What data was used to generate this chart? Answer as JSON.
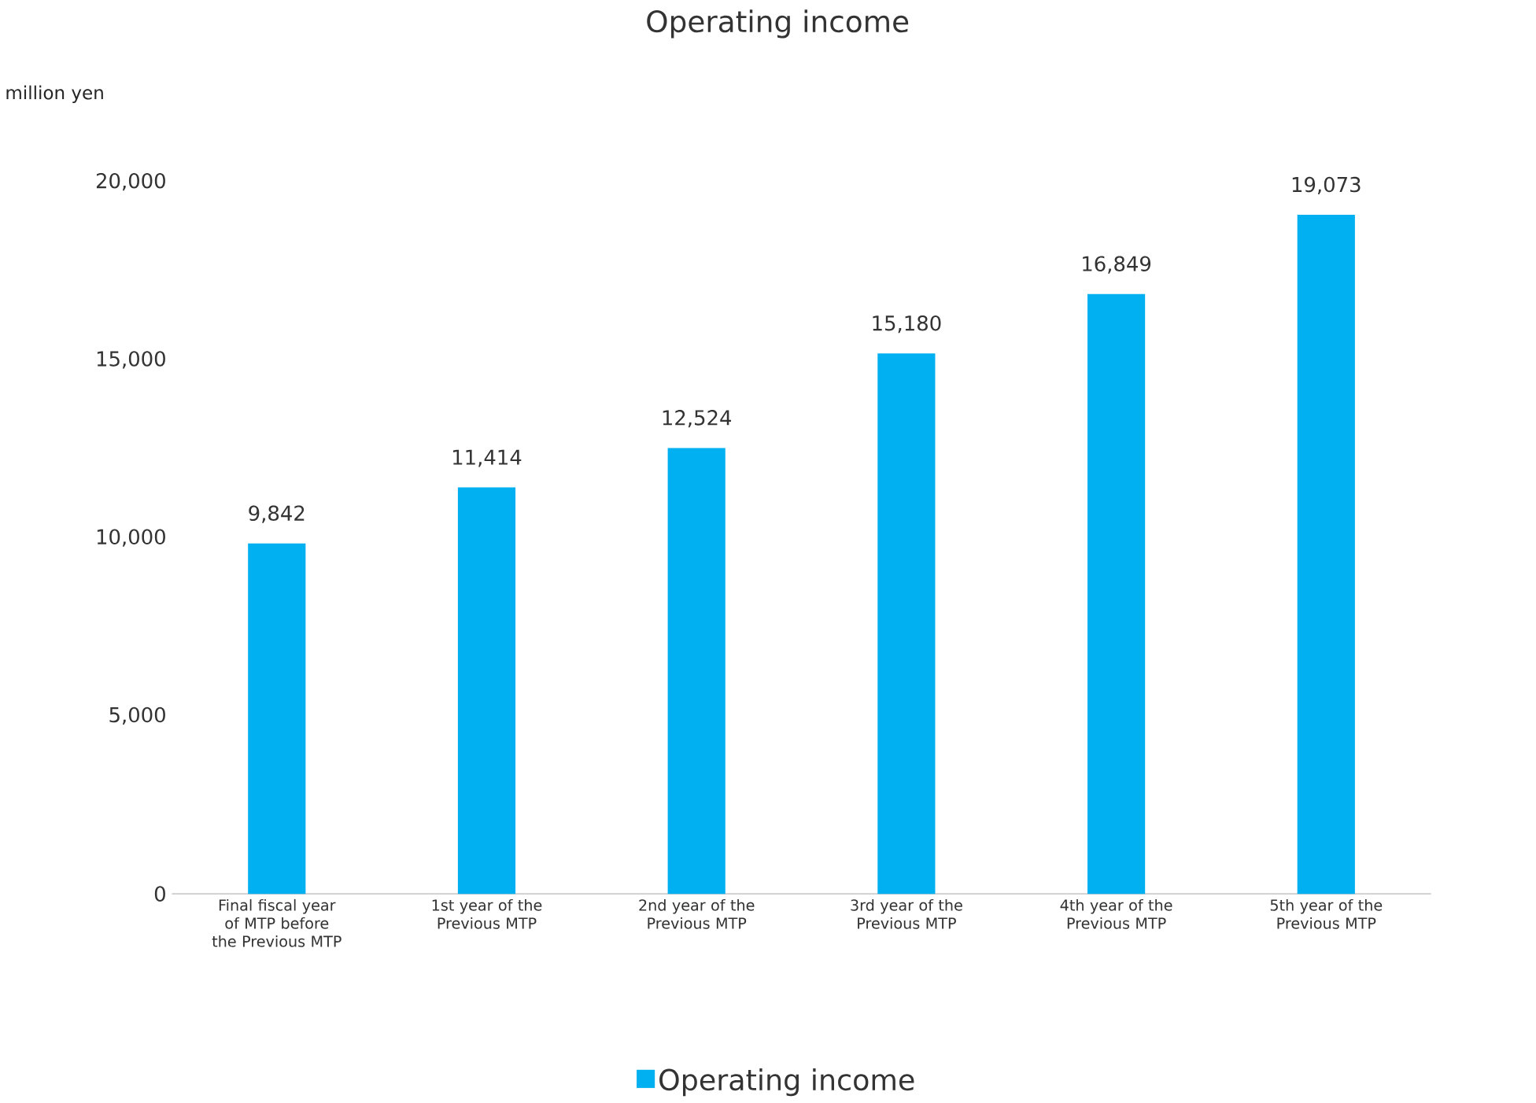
{
  "chart_data": {
    "type": "bar",
    "title": "Operating income",
    "ylabel": "million yen",
    "categories": [
      "Final fiscal year of MTP before the Previous MTP",
      "1st year of the Previous MTP",
      "2nd year of the Previous MTP",
      "3rd year of the Previous MTP",
      "4th year of the Previous MTP",
      "5th year of the Previous MTP"
    ],
    "series": [
      {
        "name": "Operating income",
        "color": "#00b0f0",
        "values": [
          9842,
          11414,
          12524,
          15180,
          16849,
          19073
        ],
        "value_labels": [
          "9,842",
          "11,414",
          "12,524",
          "15,180",
          "16,849",
          "19,073"
        ]
      }
    ],
    "ylim": [
      0,
      20000
    ],
    "yticks": [
      {
        "value": 0,
        "label": "0"
      },
      {
        "value": 5000,
        "label": "5,000"
      },
      {
        "value": 10000,
        "label": "10,000"
      },
      {
        "value": 15000,
        "label": "15,000"
      },
      {
        "value": 20000,
        "label": "20,000"
      }
    ],
    "grid": false,
    "legend": "bottom"
  }
}
